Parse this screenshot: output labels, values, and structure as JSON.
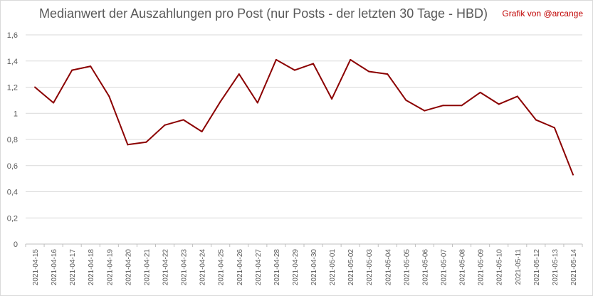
{
  "chart_data": {
    "type": "line",
    "title": "Medianwert der Auszahlungen pro Post (nur Posts - der letzten 30 Tage - HBD)",
    "credit": "Grafik von @arcange",
    "xlabel": "",
    "ylabel": "",
    "ylim": [
      0,
      1.6
    ],
    "y_ticks": [
      "0",
      "0,2",
      "0,4",
      "0,6",
      "0,8",
      "1",
      "1,2",
      "1,4",
      "1,6"
    ],
    "grid": true,
    "line_color": "#8b0000",
    "categories": [
      "2021-04-15",
      "2021-04-16",
      "2021-04-17",
      "2021-04-18",
      "2021-04-19",
      "2021-04-20",
      "2021-04-21",
      "2021-04-22",
      "2021-04-23",
      "2021-04-24",
      "2021-04-25",
      "2021-04-26",
      "2021-04-27",
      "2021-04-28",
      "2021-04-29",
      "2021-04-30",
      "2021-05-01",
      "2021-05-02",
      "2021-05-03",
      "2021-05-04",
      "2021-05-05",
      "2021-05-06",
      "2021-05-07",
      "2021-05-08",
      "2021-05-09",
      "2021-05-10",
      "2021-05-11",
      "2021-05-12",
      "2021-05-13",
      "2021-05-14"
    ],
    "values": [
      1.2,
      1.08,
      1.33,
      1.36,
      1.13,
      0.76,
      0.78,
      0.91,
      0.95,
      0.86,
      1.09,
      1.3,
      1.08,
      1.41,
      1.33,
      1.38,
      1.11,
      1.41,
      1.32,
      1.3,
      1.1,
      1.02,
      1.06,
      1.06,
      1.16,
      1.07,
      1.13,
      0.95,
      0.89,
      0.53
    ]
  }
}
